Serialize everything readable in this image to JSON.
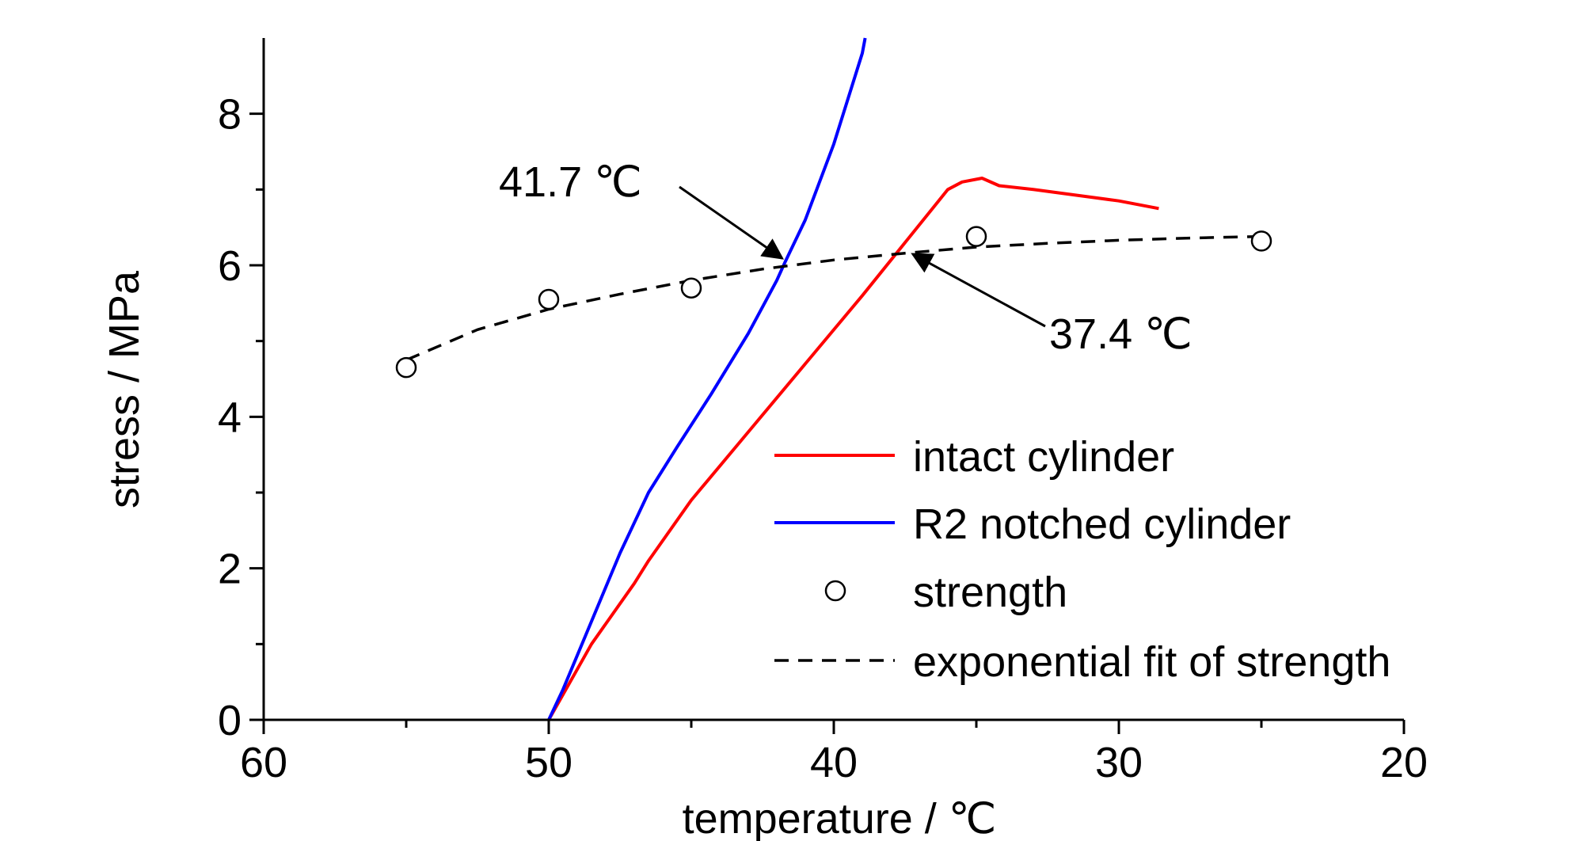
{
  "chart_data": {
    "type": "line",
    "xlabel": "temperature /  ℃",
    "ylabel": "stress / MPa",
    "xlim": [
      60,
      20
    ],
    "ylim": [
      0,
      9
    ],
    "x_reversed": true,
    "x_ticks": [
      "60",
      "50",
      "40",
      "30",
      "20"
    ],
    "y_ticks": [
      "0",
      "2",
      "4",
      "6",
      "8"
    ],
    "grid": false,
    "legend_position": "bottom-right",
    "series": [
      {
        "name": "intact cylinder",
        "style": "solid",
        "color": "#ff0000",
        "points": [
          [
            50.0,
            0.0
          ],
          [
            48.5,
            1.0
          ],
          [
            47.0,
            1.8
          ],
          [
            46.5,
            2.1
          ],
          [
            45.0,
            2.9
          ],
          [
            43.0,
            3.8
          ],
          [
            41.0,
            4.7
          ],
          [
            39.0,
            5.6
          ],
          [
            37.5,
            6.3
          ],
          [
            36.0,
            7.0
          ],
          [
            35.5,
            7.1
          ],
          [
            34.8,
            7.15
          ],
          [
            34.2,
            7.05
          ],
          [
            33.0,
            7.0
          ],
          [
            31.0,
            6.9
          ],
          [
            30.0,
            6.85
          ],
          [
            28.6,
            6.75
          ]
        ]
      },
      {
        "name": "R2 notched cylinder",
        "style": "solid",
        "color": "#0000ff",
        "points": [
          [
            50.0,
            0.0
          ],
          [
            49.5,
            0.4
          ],
          [
            48.5,
            1.3
          ],
          [
            47.5,
            2.2
          ],
          [
            46.5,
            3.0
          ],
          [
            45.5,
            3.6
          ],
          [
            44.3,
            4.3
          ],
          [
            43.0,
            5.1
          ],
          [
            42.0,
            5.8
          ],
          [
            41.7,
            6.05
          ],
          [
            41.0,
            6.6
          ],
          [
            40.0,
            7.6
          ],
          [
            39.0,
            8.8
          ],
          [
            38.9,
            9.0
          ]
        ]
      },
      {
        "name": "strength",
        "style": "markers",
        "color": "#000000",
        "points": [
          [
            55,
            4.65
          ],
          [
            50,
            5.55
          ],
          [
            45,
            5.7
          ],
          [
            35,
            6.38
          ],
          [
            25,
            6.32
          ]
        ]
      },
      {
        "name": "exponential fit of strength",
        "style": "dashed",
        "color": "#000000",
        "points": [
          [
            55,
            4.75
          ],
          [
            52.5,
            5.15
          ],
          [
            50,
            5.42
          ],
          [
            47.5,
            5.62
          ],
          [
            45,
            5.8
          ],
          [
            42.5,
            5.95
          ],
          [
            40,
            6.07
          ],
          [
            37.5,
            6.16
          ],
          [
            35,
            6.24
          ],
          [
            32.5,
            6.29
          ],
          [
            30,
            6.33
          ],
          [
            27.5,
            6.36
          ],
          [
            25,
            6.38
          ]
        ]
      }
    ],
    "annotations": [
      {
        "text": "41.7  ℃",
        "target": [
          41.7,
          6.05
        ]
      },
      {
        "text": "37.4 ℃",
        "target": [
          37.4,
          6.19
        ]
      }
    ]
  }
}
